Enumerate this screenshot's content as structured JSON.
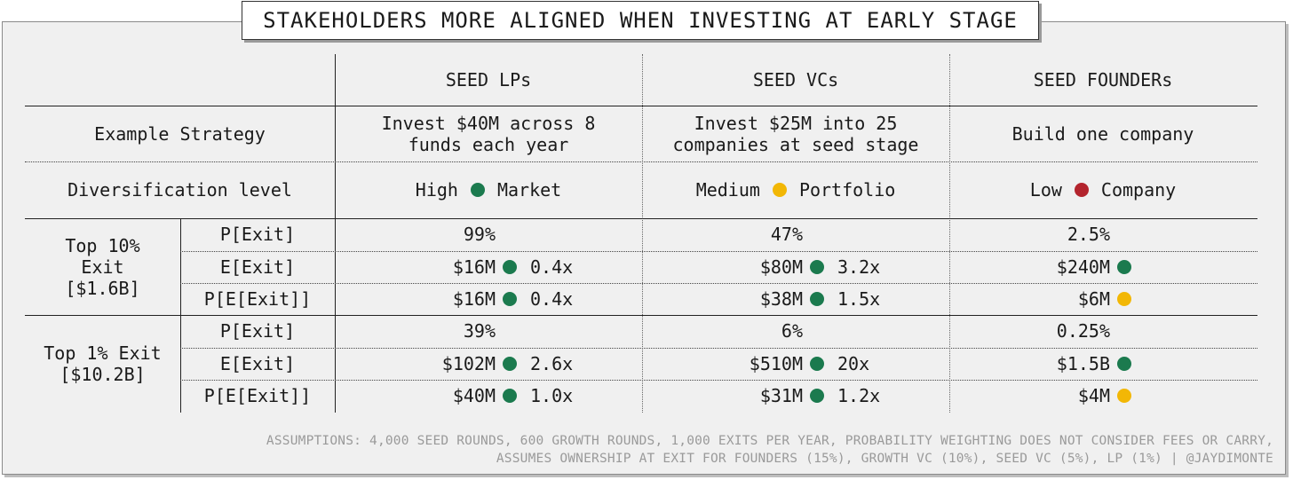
{
  "title": "STAKEHOLDERS MORE ALIGNED WHEN INVESTING AT EARLY STAGE",
  "columns": [
    "SEED LPs",
    "SEED VCs",
    "SEED FOUNDERs"
  ],
  "strategy": {
    "label": "Example Strategy",
    "lines": [
      [
        "Invest $40M across 8",
        "funds each year"
      ],
      [
        "Invest $25M into 25",
        "companies at seed stage"
      ],
      [
        "Build one company"
      ]
    ]
  },
  "diversification": {
    "label": "Diversification level",
    "items": [
      {
        "level": "High",
        "scope": "Market",
        "color": "green"
      },
      {
        "level": "Medium",
        "scope": "Portfolio",
        "color": "yellow"
      },
      {
        "level": "Low",
        "scope": "Company",
        "color": "red"
      }
    ]
  },
  "groups": [
    {
      "label": [
        "Top 10%",
        "Exit",
        "[$1.6B]"
      ],
      "rows": [
        {
          "metric": "P[Exit]",
          "values": [
            {
              "v": "99%"
            },
            {
              "v": "47%"
            },
            {
              "v": "2.5%"
            }
          ]
        },
        {
          "metric": "E[Exit]",
          "values": [
            {
              "v": "$16M",
              "dot": "green",
              "mult": "0.4x"
            },
            {
              "v": "$80M",
              "dot": "green",
              "mult": "3.2x"
            },
            {
              "v": "$240M",
              "dot": "green",
              "mult": ""
            }
          ]
        },
        {
          "metric": "P[E[Exit]]",
          "values": [
            {
              "v": "$16M",
              "dot": "green",
              "mult": "0.4x"
            },
            {
              "v": "$38M",
              "dot": "green",
              "mult": "1.5x"
            },
            {
              "v": "$6M",
              "dot": "yellow",
              "mult": ""
            }
          ]
        }
      ]
    },
    {
      "label": [
        "Top 1% Exit",
        "[$10.2B]"
      ],
      "rows": [
        {
          "metric": "P[Exit]",
          "values": [
            {
              "v": "39%"
            },
            {
              "v": "6%"
            },
            {
              "v": "0.25%"
            }
          ]
        },
        {
          "metric": "E[Exit]",
          "values": [
            {
              "v": "$102M",
              "dot": "green",
              "mult": "2.6x"
            },
            {
              "v": "$510M",
              "dot": "green",
              "mult": "20x"
            },
            {
              "v": "$1.5B",
              "dot": "green",
              "mult": ""
            }
          ]
        },
        {
          "metric": "P[E[Exit]]",
          "values": [
            {
              "v": "$40M",
              "dot": "green",
              "mult": "1.0x"
            },
            {
              "v": "$31M",
              "dot": "green",
              "mult": "1.2x"
            },
            {
              "v": "$4M",
              "dot": "yellow",
              "mult": ""
            }
          ]
        }
      ]
    }
  ],
  "footnote": [
    "ASSUMPTIONS: 4,000 SEED ROUNDS, 600 GROWTH ROUNDS, 1,000 EXITS PER YEAR, PROBABILITY WEIGHTING DOES NOT CONSIDER FEES OR CARRY,",
    "ASSUMES OWNERSHIP AT EXIT FOR FOUNDERS (15%), GROWTH VC (10%), SEED VC (5%), LP (1%) | @JAYDIMONTE"
  ],
  "colors": {
    "green": "#1b7a4e",
    "yellow": "#f2b705",
    "red": "#b3242d"
  }
}
